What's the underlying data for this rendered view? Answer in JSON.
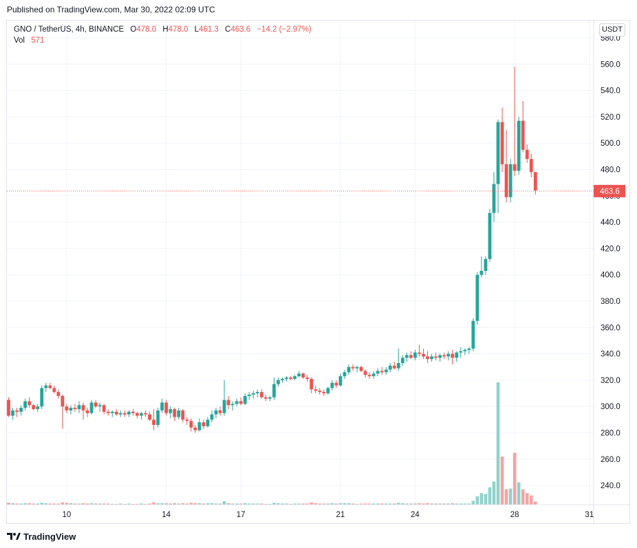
{
  "header": {
    "published": "Published on TradingView.com, Mar 30, 2022 02:09 UTC"
  },
  "legend": {
    "symbol": "GNO / TetherUS, 4h, BINANCE",
    "open_label": "O",
    "open": "478.0",
    "high_label": "H",
    "high": "478.0",
    "low_label": "L",
    "low": "461.3",
    "close_label": "C",
    "close": "463.6",
    "change": "−14.2 (−2.97%)",
    "vol_label": "Vol",
    "vol": "571"
  },
  "currency_button": "USDT",
  "footer": {
    "brand": "TradingView"
  },
  "colors": {
    "up": "#26a69a",
    "down": "#ef5350",
    "vol_up": "#8fd3cb",
    "vol_down": "#f5a3a3",
    "grid": "#f0f3fa"
  },
  "chart_data": {
    "type": "candlestick",
    "timeframe": "4h",
    "ylim": [
      226,
      585
    ],
    "y_ticks": [
      240,
      260,
      280,
      300,
      320,
      340,
      360,
      380,
      400,
      420,
      440,
      460,
      480,
      500,
      520,
      540,
      560,
      580
    ],
    "y_tick_labels": [
      "240.0",
      "260.0",
      "280.0",
      "300.0",
      "320.0",
      "340.0",
      "360.0",
      "380.0",
      "400.0",
      "420.0",
      "440.0",
      "460.0",
      "480.0",
      "500.0",
      "520.0",
      "540.0",
      "560.0",
      "580.0"
    ],
    "x_tick_labels": [
      "10",
      "14",
      "17",
      "21",
      "24",
      "28",
      "31"
    ],
    "x_tick_bar_index": [
      14,
      38,
      56,
      80,
      98,
      122,
      140
    ],
    "last_price": 463.6,
    "last_price_label": "463.6",
    "volume_scale_max": 318,
    "candles": [
      [
        305,
        307,
        292,
        293,
        5
      ],
      [
        293,
        299,
        290,
        297,
        4
      ],
      [
        297,
        299,
        292,
        296,
        3
      ],
      [
        296,
        301,
        293,
        299,
        3
      ],
      [
        299,
        306,
        297,
        304,
        4
      ],
      [
        304,
        307,
        299,
        301,
        4
      ],
      [
        301,
        302,
        297,
        298,
        3
      ],
      [
        298,
        302,
        296,
        300,
        3
      ],
      [
        300,
        316,
        298,
        314,
        5
      ],
      [
        314,
        318,
        311,
        316,
        4
      ],
      [
        316,
        318,
        313,
        314,
        3
      ],
      [
        314,
        316,
        310,
        311,
        3
      ],
      [
        311,
        313,
        306,
        308,
        3
      ],
      [
        308,
        309,
        283,
        300,
        6
      ],
      [
        300,
        302,
        295,
        297,
        5
      ],
      [
        297,
        301,
        294,
        299,
        4
      ],
      [
        299,
        302,
        296,
        298,
        3
      ],
      [
        298,
        304,
        295,
        301,
        3
      ],
      [
        301,
        303,
        290,
        297,
        4
      ],
      [
        297,
        299,
        292,
        295,
        3
      ],
      [
        295,
        305,
        294,
        303,
        4
      ],
      [
        303,
        305,
        299,
        300,
        3
      ],
      [
        300,
        303,
        296,
        301,
        3
      ],
      [
        301,
        302,
        294,
        296,
        3
      ],
      [
        296,
        298,
        293,
        295,
        3
      ],
      [
        295,
        297,
        292,
        296,
        2
      ],
      [
        296,
        298,
        293,
        294,
        2
      ],
      [
        294,
        297,
        292,
        295,
        3
      ],
      [
        295,
        297,
        292,
        294,
        2
      ],
      [
        294,
        297,
        292,
        296,
        3
      ],
      [
        296,
        298,
        293,
        295,
        2
      ],
      [
        295,
        296,
        291,
        293,
        2
      ],
      [
        293,
        296,
        290,
        295,
        3
      ],
      [
        295,
        297,
        292,
        294,
        2
      ],
      [
        294,
        296,
        289,
        290,
        3
      ],
      [
        290,
        298,
        282,
        286,
        6
      ],
      [
        286,
        299,
        284,
        297,
        4
      ],
      [
        297,
        306,
        295,
        303,
        4
      ],
      [
        303,
        305,
        293,
        295,
        4
      ],
      [
        295,
        300,
        291,
        298,
        3
      ],
      [
        298,
        299,
        289,
        292,
        4
      ],
      [
        292,
        299,
        290,
        297,
        3
      ],
      [
        297,
        298,
        288,
        290,
        4
      ],
      [
        290,
        292,
        286,
        289,
        3
      ],
      [
        289,
        291,
        281,
        284,
        5
      ],
      [
        284,
        286,
        280,
        282,
        4
      ],
      [
        282,
        291,
        281,
        288,
        4
      ],
      [
        288,
        290,
        283,
        285,
        3
      ],
      [
        285,
        292,
        284,
        290,
        4
      ],
      [
        290,
        297,
        288,
        294,
        4
      ],
      [
        294,
        299,
        291,
        297,
        3
      ],
      [
        297,
        300,
        293,
        295,
        3
      ],
      [
        295,
        320,
        293,
        305,
        9
      ],
      [
        305,
        308,
        298,
        301,
        4
      ],
      [
        301,
        304,
        297,
        302,
        3
      ],
      [
        302,
        306,
        300,
        304,
        3
      ],
      [
        304,
        307,
        301,
        302,
        3
      ],
      [
        302,
        310,
        301,
        308,
        4
      ],
      [
        308,
        311,
        305,
        309,
        3
      ],
      [
        309,
        312,
        306,
        310,
        3
      ],
      [
        310,
        313,
        307,
        311,
        3
      ],
      [
        311,
        313,
        306,
        307,
        3
      ],
      [
        307,
        309,
        304,
        306,
        2
      ],
      [
        306,
        308,
        304,
        307,
        2
      ],
      [
        307,
        322,
        305,
        317,
        5
      ],
      [
        317,
        322,
        315,
        320,
        4
      ],
      [
        320,
        322,
        318,
        321,
        3
      ],
      [
        321,
        323,
        319,
        322,
        3
      ],
      [
        322,
        323,
        320,
        321,
        2
      ],
      [
        321,
        324,
        320,
        323,
        3
      ],
      [
        323,
        327,
        322,
        325,
        3
      ],
      [
        325,
        326,
        321,
        322,
        3
      ],
      [
        322,
        324,
        319,
        321,
        3
      ],
      [
        321,
        322,
        310,
        313,
        6
      ],
      [
        313,
        316,
        310,
        312,
        4
      ],
      [
        312,
        314,
        309,
        311,
        3
      ],
      [
        311,
        313,
        308,
        310,
        3
      ],
      [
        310,
        315,
        309,
        314,
        3
      ],
      [
        314,
        320,
        312,
        318,
        4
      ],
      [
        318,
        320,
        314,
        316,
        3
      ],
      [
        316,
        325,
        315,
        323,
        4
      ],
      [
        323,
        328,
        321,
        326,
        4
      ],
      [
        326,
        332,
        324,
        330,
        4
      ],
      [
        330,
        332,
        327,
        329,
        3
      ],
      [
        329,
        331,
        326,
        330,
        2
      ],
      [
        330,
        331,
        326,
        327,
        3
      ],
      [
        327,
        328,
        322,
        324,
        3
      ],
      [
        324,
        326,
        321,
        323,
        3
      ],
      [
        323,
        327,
        321,
        325,
        3
      ],
      [
        325,
        329,
        323,
        327,
        3
      ],
      [
        327,
        330,
        324,
        326,
        3
      ],
      [
        326,
        330,
        324,
        328,
        3
      ],
      [
        328,
        333,
        326,
        331,
        3
      ],
      [
        331,
        334,
        328,
        329,
        3
      ],
      [
        329,
        344,
        327,
        333,
        5
      ],
      [
        333,
        339,
        331,
        337,
        4
      ],
      [
        337,
        341,
        334,
        339,
        3
      ],
      [
        339,
        342,
        336,
        337,
        3
      ],
      [
        337,
        343,
        335,
        341,
        3
      ],
      [
        341,
        347,
        338,
        340,
        4
      ],
      [
        340,
        344,
        336,
        338,
        3
      ],
      [
        338,
        342,
        333,
        336,
        4
      ],
      [
        336,
        340,
        334,
        338,
        3
      ],
      [
        338,
        341,
        335,
        337,
        3
      ],
      [
        337,
        340,
        334,
        339,
        3
      ],
      [
        339,
        341,
        336,
        338,
        3
      ],
      [
        338,
        342,
        335,
        340,
        3
      ],
      [
        340,
        343,
        332,
        337,
        4
      ],
      [
        337,
        342,
        334,
        341,
        3
      ],
      [
        341,
        345,
        337,
        342,
        3
      ],
      [
        342,
        344,
        339,
        343,
        3
      ],
      [
        343,
        345,
        340,
        344,
        3
      ],
      [
        344,
        367,
        342,
        365,
        10
      ],
      [
        365,
        402,
        362,
        400,
        22
      ],
      [
        400,
        414,
        398,
        403,
        30
      ],
      [
        403,
        414,
        400,
        412,
        28
      ],
      [
        412,
        450,
        410,
        447,
        45
      ],
      [
        447,
        478,
        440,
        469,
        60
      ],
      [
        469,
        518,
        447,
        516,
        318
      ],
      [
        516,
        527,
        478,
        484,
        125
      ],
      [
        484,
        510,
        455,
        459,
        40
      ],
      [
        459,
        488,
        455,
        484,
        42
      ],
      [
        484,
        558,
        475,
        479,
        135
      ],
      [
        479,
        520,
        476,
        517,
        58
      ],
      [
        517,
        532,
        493,
        495,
        40
      ],
      [
        495,
        499,
        485,
        488,
        30
      ],
      [
        488,
        492,
        474,
        478,
        24
      ],
      [
        478,
        478,
        461,
        464,
        8
      ]
    ]
  }
}
